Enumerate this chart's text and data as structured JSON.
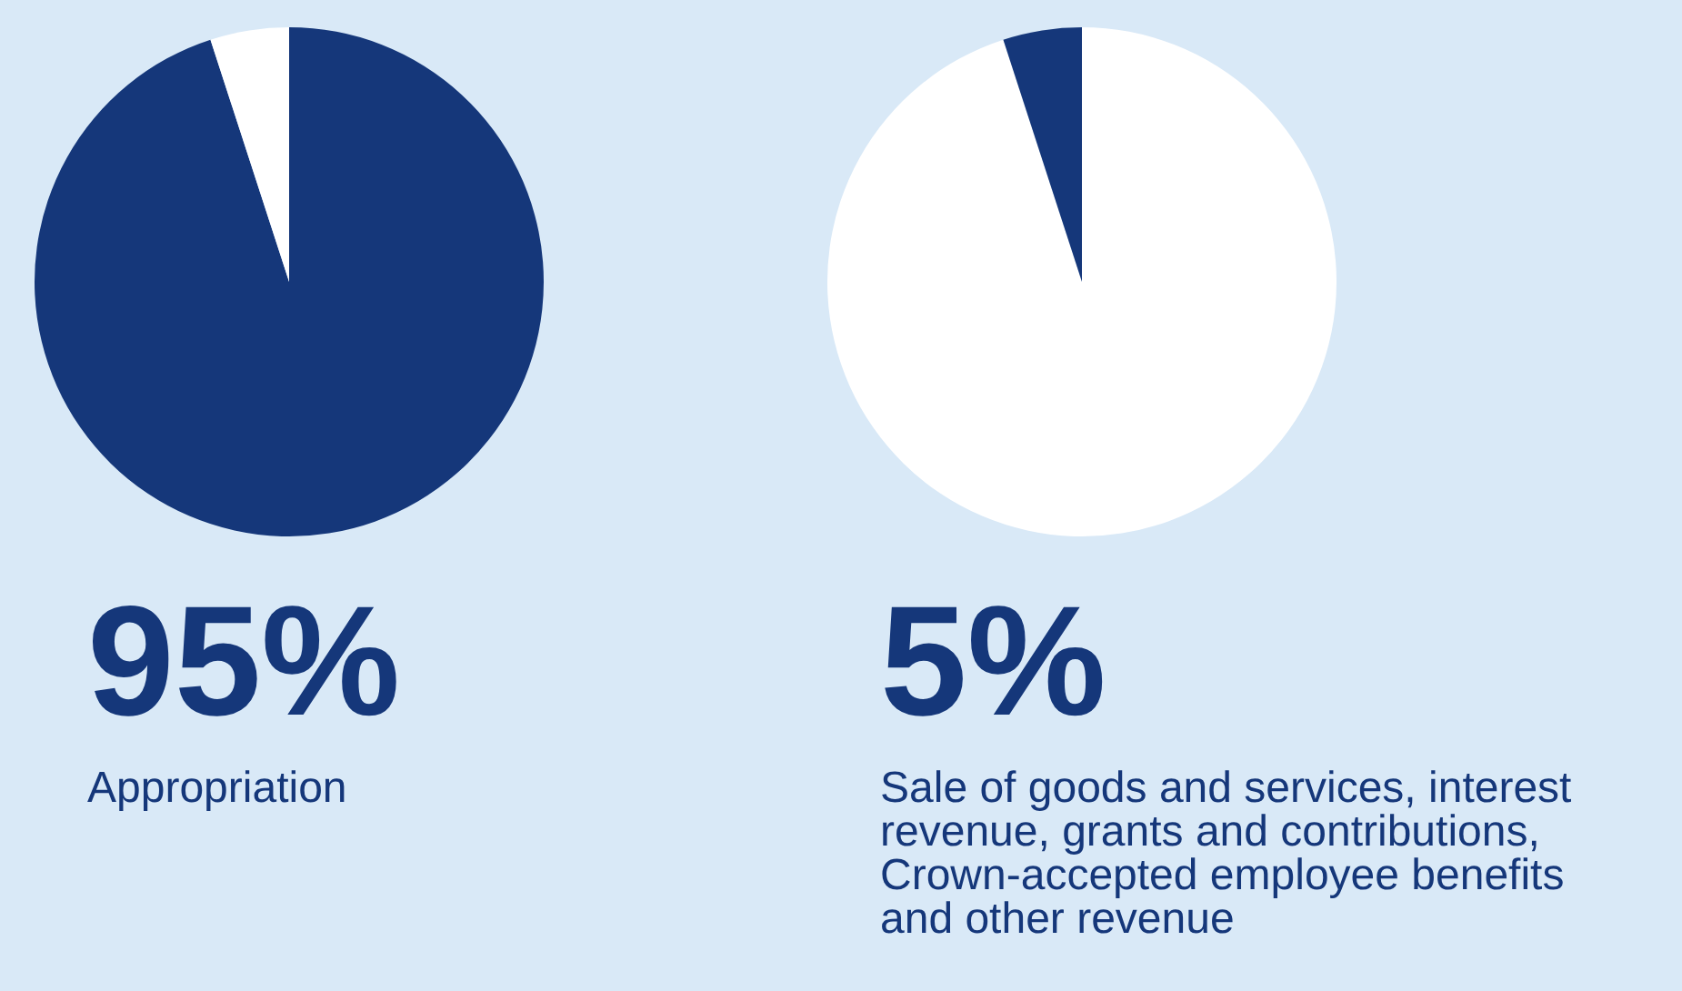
{
  "chart_data": [
    {
      "type": "pie",
      "categories": [
        "Appropriation",
        null
      ],
      "values": [
        95,
        5
      ],
      "colors": [
        "#15377a",
        "#ffffff"
      ],
      "value_labels": [
        "95%",
        null
      ]
    },
    {
      "type": "pie",
      "categories": [
        null,
        null
      ],
      "values": [
        95,
        5
      ],
      "colors": [
        "#ffffff",
        "#15377a"
      ],
      "annotations": [
        "5%",
        "Sale of goods and services, interest revenue, grants and contributions, Crown-accepted employee benefits and other revenue"
      ]
    }
  ]
}
